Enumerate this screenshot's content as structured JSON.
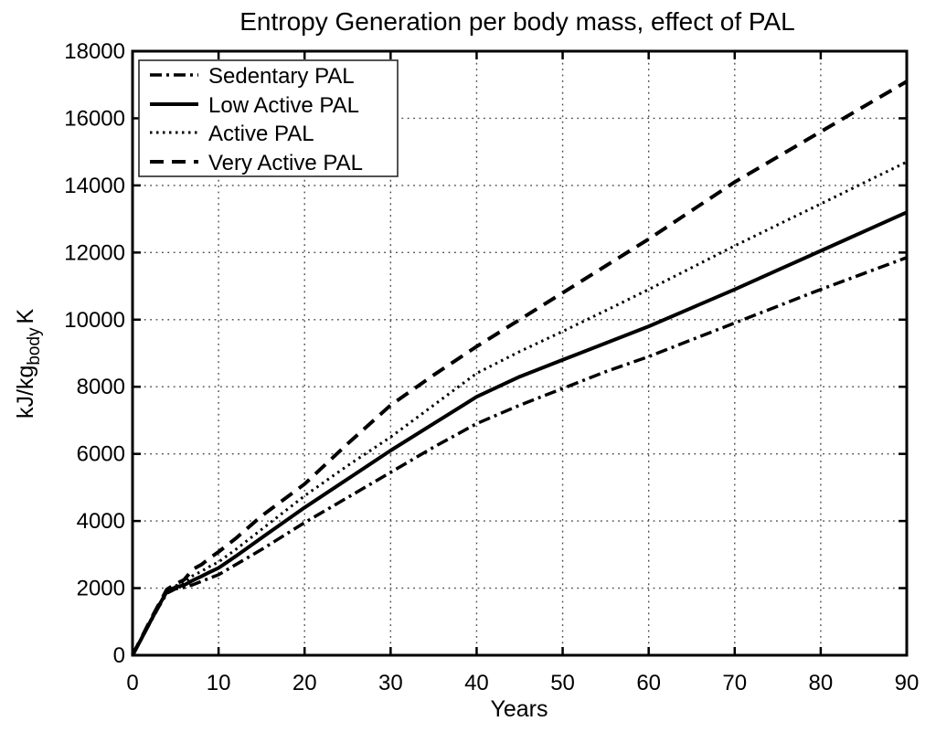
{
  "figure": {
    "background": "#ffffff",
    "line_color": "#000000",
    "grid_color": "#4a4a4a"
  },
  "chart_data": {
    "type": "line",
    "title": "Entropy Generation per body mass, effect of PAL",
    "xlabel": "Years",
    "ylabel_prefix": "kJ/kg",
    "ylabel_subscript": "body",
    "ylabel_suffix": "K",
    "xlim": [
      0,
      90
    ],
    "ylim": [
      0,
      18000
    ],
    "xticks": [
      0,
      10,
      20,
      30,
      40,
      50,
      60,
      70,
      80,
      90
    ],
    "yticks": [
      0,
      2000,
      4000,
      6000,
      8000,
      10000,
      12000,
      14000,
      16000,
      18000
    ],
    "grid": "dotted",
    "legend_position": "top-left",
    "x": [
      0,
      1,
      2,
      3,
      4,
      5,
      6,
      7,
      8,
      9,
      10,
      12,
      15,
      20,
      25,
      30,
      35,
      40,
      45,
      50,
      55,
      60,
      65,
      70,
      75,
      80,
      85,
      90
    ],
    "series": [
      {
        "name": "Sedentary PAL",
        "style": "dashdot",
        "color": "#000000",
        "values": [
          0,
          470,
          950,
          1420,
          1850,
          1980,
          2020,
          2100,
          2200,
          2300,
          2400,
          2700,
          3150,
          3950,
          4700,
          5450,
          6200,
          6900,
          7450,
          7950,
          8450,
          8900,
          9400,
          9900,
          10400,
          10900,
          11375,
          11850
        ]
      },
      {
        "name": "Low Active PAL",
        "style": "solid",
        "color": "#000000",
        "values": [
          0,
          480,
          970,
          1450,
          1900,
          2030,
          2090,
          2230,
          2350,
          2480,
          2600,
          2950,
          3500,
          4400,
          5250,
          6100,
          6900,
          7700,
          8300,
          8800,
          9300,
          9800,
          10350,
          10900,
          11475,
          12050,
          12625,
          13200
        ]
      },
      {
        "name": "Active PAL",
        "style": "dotted",
        "color": "#000000",
        "values": [
          0,
          490,
          990,
          1470,
          1930,
          2070,
          2150,
          2370,
          2500,
          2650,
          2780,
          3150,
          3750,
          4750,
          5650,
          6500,
          7450,
          8400,
          9050,
          9650,
          10270,
          10900,
          11550,
          12200,
          12825,
          13450,
          14075,
          14700
        ]
      },
      {
        "name": "Very Active PAL",
        "style": "dashed",
        "color": "#000000",
        "values": [
          0,
          500,
          1010,
          1490,
          1960,
          2120,
          2250,
          2560,
          2700,
          2900,
          3080,
          3480,
          4150,
          5100,
          6300,
          7450,
          8350,
          9200,
          10000,
          10800,
          11600,
          12400,
          13250,
          14100,
          14850,
          15600,
          16350,
          17100
        ]
      }
    ]
  }
}
